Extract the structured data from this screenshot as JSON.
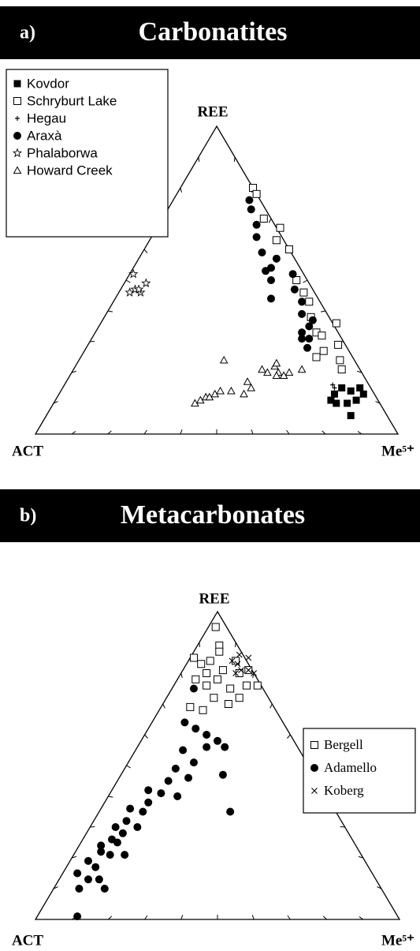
{
  "chart_data": [
    {
      "type": "ternary",
      "panel_label": "a)",
      "title": "Carbonatites",
      "apex_label": "REE",
      "left_label": "ACT",
      "right_label": "Me⁵⁺",
      "ticks": [
        10,
        20,
        30,
        40,
        50,
        60,
        70,
        80,
        90
      ],
      "legend": "upper left",
      "series": [
        {
          "name": "Kovdor",
          "marker": "square-filled",
          "color": "#000000",
          "ree": [
            13,
            15,
            14,
            15,
            10,
            10,
            11,
            13,
            6,
            11
          ],
          "me5": [
            76,
            77,
            80,
            82,
            78,
            81,
            83,
            84,
            84,
            76
          ]
        },
        {
          "name": "Schryburt Lake",
          "marker": "square-open",
          "color": "#000000",
          "ree": [
            80,
            78,
            70,
            63,
            67,
            60,
            50,
            46,
            43,
            38,
            33,
            32,
            27,
            36,
            29,
            24,
            21,
            25
          ],
          "me5": [
            20,
            22,
            28,
            35,
            34,
            40,
            47,
            51,
            54,
            57,
            61,
            63,
            66,
            65,
            69,
            72,
            74,
            65
          ]
        },
        {
          "name": "Hegau",
          "marker": "plus",
          "color": "#000000",
          "ree": [
            16,
            15,
            13
          ],
          "me5": [
            74,
            75,
            76
          ]
        },
        {
          "name": "Araxà",
          "marker": "circle-filled",
          "color": "#000000",
          "ree": [
            76,
            73,
            68,
            64,
            59,
            53,
            54,
            57,
            50,
            44,
            52,
            47,
            43,
            39,
            33,
            35,
            31,
            28,
            37,
            31
          ],
          "me5": [
            21,
            23,
            27,
            29,
            33,
            37,
            38,
            38,
            40,
            43,
            45,
            48,
            52,
            54,
            57,
            58,
            60,
            61,
            58,
            58
          ]
        },
        {
          "name": "Phalaborwa",
          "marker": "star",
          "color": "#000000",
          "ree": [
            52,
            46,
            47,
            46,
            49,
            47
          ],
          "me5": [
            1,
            3,
            4,
            6,
            6,
            5
          ]
        },
        {
          "name": "Howard Creek",
          "marker": "triangle-open",
          "color": "#000000",
          "ree": [
            24,
            10,
            11,
            12,
            12,
            13,
            14,
            14,
            13,
            17,
            15,
            21,
            20,
            22,
            23,
            20,
            19,
            20,
            21,
            19
          ],
          "me5": [
            40,
            39,
            40,
            41,
            42,
            43,
            44,
            47,
            51,
            50,
            52,
            52,
            54,
            55,
            55,
            57,
            59,
            60,
            63,
            57
          ]
        }
      ]
    },
    {
      "type": "ternary",
      "panel_label": "b)",
      "title": "Metacarbonates",
      "apex_label": "REE",
      "left_label": "ACT",
      "right_label": "Me⁵⁺",
      "ticks": [
        10,
        20,
        30,
        40,
        50,
        60,
        70,
        80,
        90
      ],
      "legend": "right",
      "series": [
        {
          "name": "Bergell",
          "marker": "square-open",
          "color": "#000000",
          "ree": [
            95,
            89,
            87,
            85,
            83,
            84,
            80,
            81,
            84,
            80,
            81,
            78,
            76,
            78,
            75,
            76,
            72,
            70,
            68,
            69,
            76,
            72
          ],
          "me5": [
            2,
            6,
            7,
            1,
            4,
            6,
            7,
            11,
            13,
            16,
            18,
            5,
            9,
            11,
            16,
            20,
            13,
            18,
            12,
            8,
            23,
            20
          ]
        },
        {
          "name": "Adamello",
          "marker": "circle-filled",
          "color": "#000000",
          "ree": [
            75,
            64,
            62,
            60,
            58,
            56,
            56,
            55,
            51,
            49,
            46,
            47,
            45,
            42,
            41,
            40,
            38,
            36,
            35,
            32,
            30,
            28,
            30,
            26,
            24,
            25,
            22,
            21,
            19,
            21,
            15,
            13,
            13,
            10,
            10,
            1,
            35,
            17
          ],
          "me5": [
            6,
            9,
            13,
            17,
            21,
            24,
            19,
            13,
            18,
            14,
            19,
            28,
            14,
            10,
            14,
            19,
            12,
            8,
            12,
            9,
            7,
            10,
            13,
            8,
            6,
            10,
            7,
            10,
            5,
            14,
            4,
            8,
            11,
            7,
            14,
            11,
            36,
            8
          ]
        },
        {
          "name": "Koberg",
          "marker": "cross",
          "color": "#000000",
          "ree": [
            84,
            83,
            81,
            85,
            81,
            80,
            86,
            80
          ],
          "me5": [
            12,
            14,
            16,
            16,
            18,
            20,
            13,
            15
          ]
        }
      ]
    }
  ]
}
